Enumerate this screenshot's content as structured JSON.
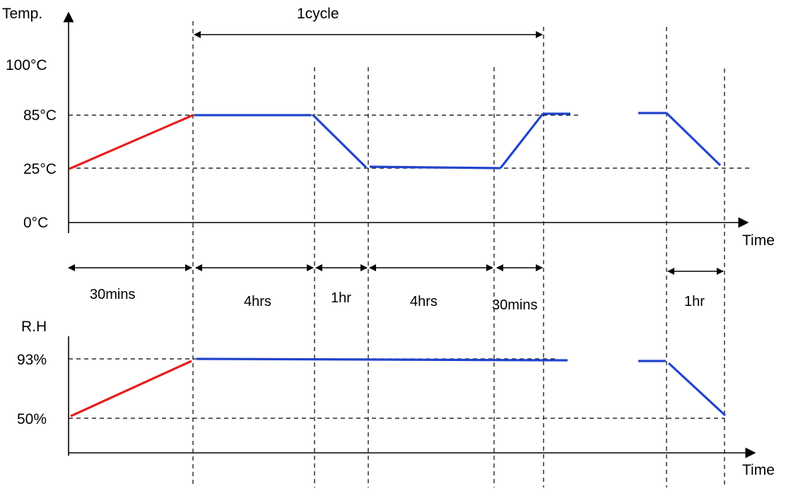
{
  "colors": {
    "ramp_up": "#e61e1e",
    "profile": "#2244cc",
    "line": "#000000"
  },
  "temperature_axis": {
    "title": "Temp.",
    "x_label": "Time",
    "levels": [
      "100°C",
      "85°C",
      "25°C",
      "0°C"
    ]
  },
  "humidity_axis": {
    "title": "R.H",
    "x_label": "Time",
    "levels": [
      "93%",
      "50%"
    ]
  },
  "cycle_label": "1cycle",
  "durations": [
    "30mins",
    "4hrs",
    "1hr",
    "4hrs",
    "30mins",
    "1hr"
  ]
}
